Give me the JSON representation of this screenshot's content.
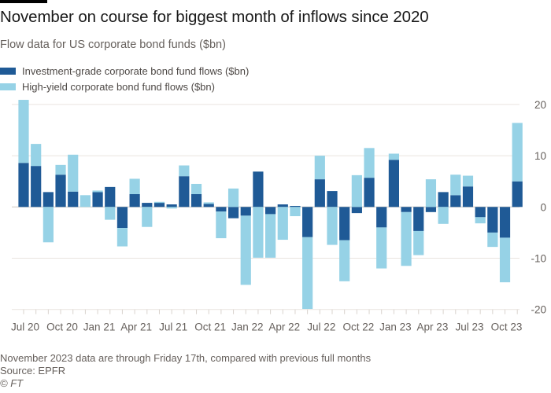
{
  "header": {
    "title": "November on course for biggest month of inflows since 2020",
    "subtitle": "Flow data for US corporate bond funds ($bn)"
  },
  "footer": {
    "note": "November 2023 data are through Friday 17th, compared with previous full months",
    "source": "Source: EPFR",
    "copyright": "© FT"
  },
  "colors": {
    "investment_grade": "#1f5a96",
    "high_yield": "#96d2e6",
    "grid": "#e9e4df",
    "axis_text": "#66605c"
  },
  "chart_data": {
    "type": "bar",
    "stacked": true,
    "title": "November on course for biggest month of inflows since 2020",
    "subtitle": "Flow data for US corporate bond funds ($bn)",
    "xlabel": "",
    "ylabel": "$bn",
    "ylim": [
      -20,
      20
    ],
    "yticks": [
      20,
      10,
      0,
      -10,
      -20
    ],
    "y_axis_side": "right",
    "grid": true,
    "legend_position": "top-left",
    "categories": [
      "Jul 20",
      "Aug 20",
      "Sep 20",
      "Oct 20",
      "Nov 20",
      "Dec 20",
      "Jan 21",
      "Feb 21",
      "Mar 21",
      "Apr 21",
      "May 21",
      "Jun 21",
      "Jul 21",
      "Aug 21",
      "Sep 21",
      "Oct 21",
      "Nov 21",
      "Dec 21",
      "Jan 22",
      "Feb 22",
      "Mar 22",
      "Apr 22",
      "May 22",
      "Jun 22",
      "Jul 22",
      "Aug 22",
      "Sep 22",
      "Oct 22",
      "Nov 22",
      "Dec 22",
      "Jan 23",
      "Feb 23",
      "Mar 23",
      "Apr 23",
      "May 23",
      "Jun 23",
      "Jul 23",
      "Aug 23",
      "Sep 23",
      "Oct 23",
      "Nov 23"
    ],
    "xtick_labels": [
      "Jul 20",
      "Oct 20",
      "Jan 21",
      "Apr 21",
      "Jul 21",
      "Oct 21",
      "Jan 22",
      "Apr 22",
      "Jul 22",
      "Oct 22",
      "Jan 23",
      "Apr 23",
      "Jul 23",
      "Oct 23"
    ],
    "series": [
      {
        "name": "Investment-grade corporate bond fund flows ($bn)",
        "color": "#1f5a96",
        "values": [
          8.6,
          8.0,
          2.9,
          6.3,
          3.0,
          0,
          2.9,
          3.9,
          -4.1,
          2.5,
          0.8,
          0.8,
          0.5,
          6.0,
          2.5,
          0.6,
          -0.9,
          -2.2,
          -1.7,
          6.9,
          -1.4,
          0.5,
          0.2,
          -5.9,
          5.4,
          3.1,
          -6.5,
          -1.2,
          5.7,
          -4.0,
          9.2,
          -1.0,
          -4.7,
          -1.0,
          2.9,
          2.3,
          4.0,
          -2.0,
          -5.0,
          -6.0,
          5.0
        ]
      },
      {
        "name": "High-yield corporate bond fund flows ($bn)",
        "color": "#96d2e6",
        "values": [
          12.3,
          4.3,
          -6.9,
          1.9,
          7.2,
          2.3,
          0.3,
          -2.5,
          -3.6,
          3.0,
          -3.9,
          0.2,
          -0.3,
          2.1,
          2.0,
          0.3,
          -5.2,
          3.6,
          -13.5,
          -9.9,
          -8.5,
          -6.4,
          -1.8,
          -14.0,
          4.6,
          -7.4,
          -8.0,
          6.2,
          5.8,
          -8.0,
          1.2,
          -10.5,
          -4.7,
          5.4,
          -3.3,
          4.0,
          2.1,
          -1.2,
          -2.8,
          -8.7,
          11.4
        ]
      }
    ]
  }
}
